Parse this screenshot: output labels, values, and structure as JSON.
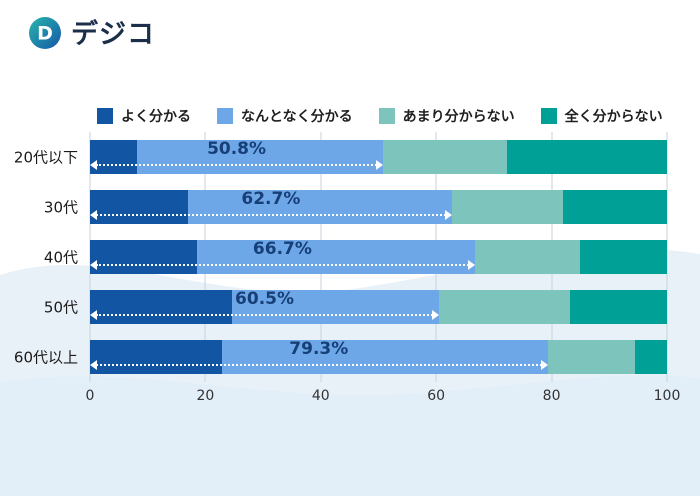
{
  "logo": {
    "text": "デジコ"
  },
  "chart_data": {
    "type": "bar",
    "orientation": "horizontal",
    "stacked": true,
    "title": "",
    "xlabel": "",
    "ylabel": "",
    "xlim": [
      0,
      100
    ],
    "x_ticks": [
      0,
      20,
      40,
      60,
      80,
      100
    ],
    "grid": true,
    "legend_position": "top",
    "categories": [
      "20代以下",
      "30代",
      "40代",
      "50代",
      "60代以上"
    ],
    "series": [
      {
        "name": "よく分かる",
        "color": "#1155a3",
        "values": [
          8.1,
          17.0,
          18.5,
          24.6,
          22.9
        ]
      },
      {
        "name": "なんとなく分かる",
        "color": "#6ea7e8",
        "values": [
          42.7,
          45.7,
          48.2,
          35.9,
          56.4
        ]
      },
      {
        "name": "あまり分からない",
        "color": "#7cc4bc",
        "values": [
          21.5,
          19.3,
          18.2,
          22.7,
          15.2
        ]
      },
      {
        "name": "全く分からない",
        "color": "#00a096",
        "values": [
          27.7,
          18.0,
          15.1,
          16.8,
          5.5
        ]
      }
    ],
    "annotations": [
      {
        "category": "20代以下",
        "value": 50.8,
        "label": "50.8%"
      },
      {
        "category": "30代",
        "value": 62.7,
        "label": "62.7%"
      },
      {
        "category": "40代",
        "value": 66.7,
        "label": "66.7%"
      },
      {
        "category": "50代",
        "value": 60.5,
        "label": "60.5%"
      },
      {
        "category": "60代以上",
        "value": 79.3,
        "label": "79.3%"
      }
    ],
    "annotation_meaning": "cumulative share of first two segments, shown with white dotted double-headed arrow"
  },
  "colors": {
    "annotation_text": "#173f77",
    "gridline": "#c9d2da",
    "wave_light": "#e9f1f8",
    "wave_deep": "#dfecf7",
    "logo_text": "#1b2f4b"
  }
}
